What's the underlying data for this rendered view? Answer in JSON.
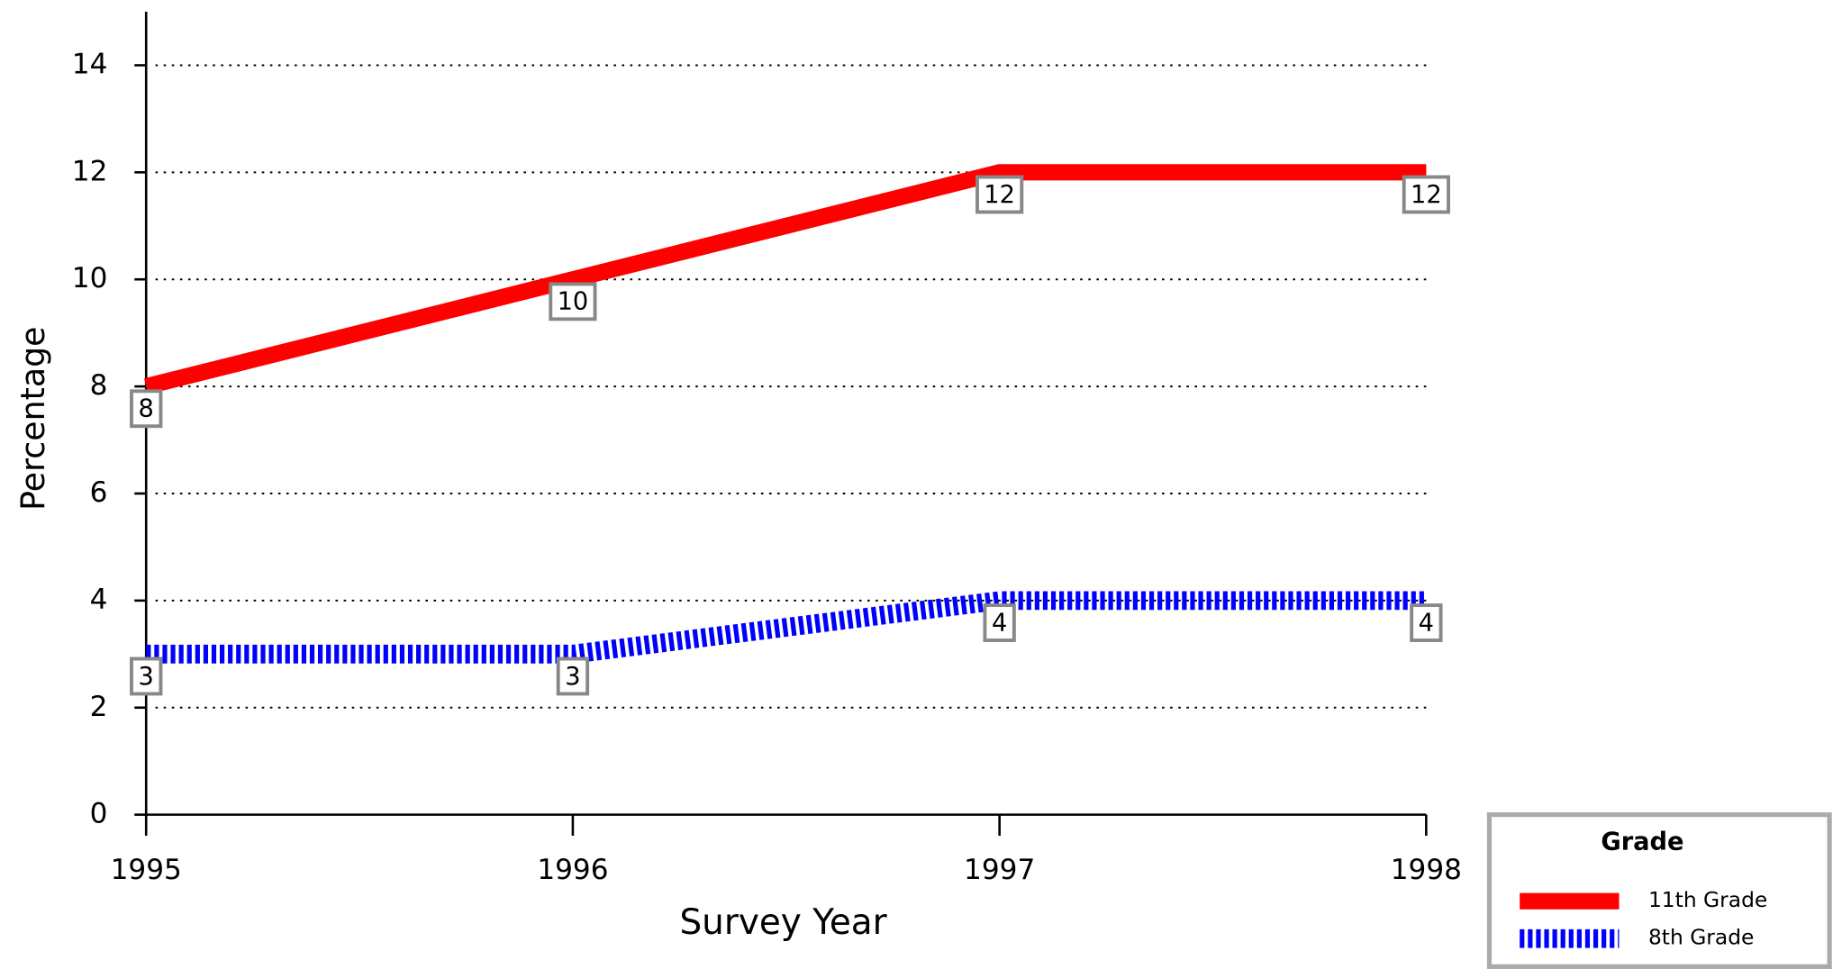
{
  "chart_data": {
    "type": "line",
    "x_label": "Survey Year",
    "y_label": "Percentage",
    "x": [
      1995,
      1996,
      1997,
      1998
    ],
    "xlim": [
      1995,
      1998
    ],
    "xticks": [
      1995,
      1996,
      1997,
      1998
    ],
    "ylim": [
      0,
      15
    ],
    "yticks": [
      0,
      2,
      4,
      6,
      8,
      10,
      12,
      14
    ],
    "grid": true,
    "legend_title": "Grade",
    "series": [
      {
        "name": "11th Grade",
        "color": "#ff0000",
        "line_style": "solid",
        "values": [
          8,
          10,
          12,
          12
        ]
      },
      {
        "name": "8th Grade",
        "color": "#0000ff",
        "line_style": "dashed",
        "values": [
          3,
          3,
          4,
          4
        ]
      }
    ]
  }
}
